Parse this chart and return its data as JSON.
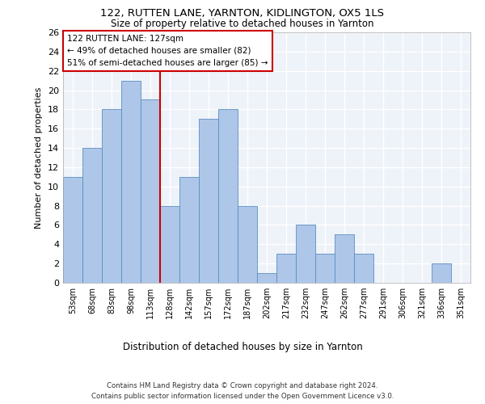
{
  "title1": "122, RUTTEN LANE, YARNTON, KIDLINGTON, OX5 1LS",
  "title2": "Size of property relative to detached houses in Yarnton",
  "xlabel": "Distribution of detached houses by size in Yarnton",
  "ylabel": "Number of detached properties",
  "categories": [
    "53sqm",
    "68sqm",
    "83sqm",
    "98sqm",
    "113sqm",
    "128sqm",
    "142sqm",
    "157sqm",
    "172sqm",
    "187sqm",
    "202sqm",
    "217sqm",
    "232sqm",
    "247sqm",
    "262sqm",
    "277sqm",
    "291sqm",
    "306sqm",
    "321sqm",
    "336sqm",
    "351sqm"
  ],
  "values": [
    11,
    14,
    18,
    21,
    19,
    8,
    11,
    17,
    18,
    8,
    1,
    3,
    6,
    3,
    5,
    3,
    0,
    0,
    0,
    2,
    0
  ],
  "bar_color": "#aec6e8",
  "bar_edge_color": "#5a8fc2",
  "background_color": "#eef2f9",
  "grid_color": "#ffffff",
  "annotation_box_text": "122 RUTTEN LANE: 127sqm\n← 49% of detached houses are smaller (82)\n51% of semi-detached houses are larger (85) →",
  "annotation_box_color": "#cc0000",
  "vline_x_index": 5,
  "vline_color": "#cc0000",
  "ylim": [
    0,
    26
  ],
  "yticks": [
    0,
    2,
    4,
    6,
    8,
    10,
    12,
    14,
    16,
    18,
    20,
    22,
    24,
    26
  ],
  "footer1": "Contains HM Land Registry data © Crown copyright and database right 2024.",
  "footer2": "Contains public sector information licensed under the Open Government Licence v3.0."
}
